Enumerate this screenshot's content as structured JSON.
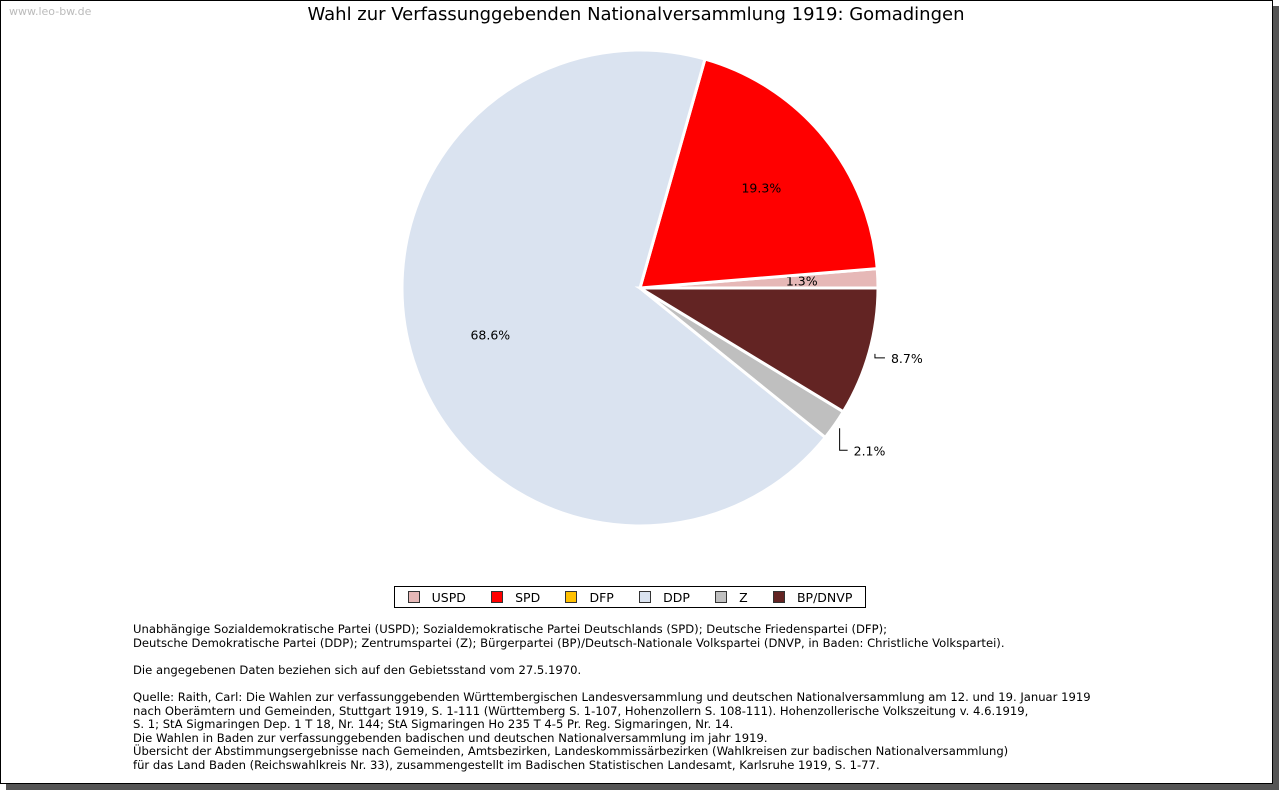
{
  "watermark": "www.leo-bw.de",
  "chart_data": {
    "type": "pie",
    "title": "Wahl zur Verfassunggebenden Nationalversammlung 1919: Gomadingen",
    "start_angle": "east, counterclockwise",
    "slices": [
      {
        "name": "USPD",
        "value": 1.3,
        "label": "1.3%",
        "color": "#e6b8b7"
      },
      {
        "name": "SPD",
        "value": 19.3,
        "label": "19.3%",
        "color": "#ff0000"
      },
      {
        "name": "DFP",
        "value": 0.0,
        "label": "0.0%",
        "color": "#ffc000"
      },
      {
        "name": "DDP",
        "value": 68.6,
        "label": "68.6%",
        "color": "#dae3f0"
      },
      {
        "name": "Z",
        "value": 2.1,
        "label": "2.1%",
        "color": "#bfbfbf"
      },
      {
        "name": "BP/DNVP",
        "value": 8.7,
        "label": "8.7%",
        "color": "#632423"
      }
    ],
    "legend_position": "bottom"
  },
  "notes": {
    "abbrev_1": "Unabhängige Sozialdemokratische Partei (USPD); Sozialdemokratische Partei Deutschlands (SPD); Deutsche Friedenspartei (DFP);",
    "abbrev_2": "Deutsche Demokratische Partei (DDP); Zentrumspartei (Z); Bürgerpartei (BP)/Deutsch-Nationale Volkspartei (DNVP, in Baden: Christliche Volkspartei).",
    "territory": "Die angegebenen Daten beziehen sich auf den Gebietsstand vom 27.5.1970.",
    "source_1": "Quelle: Raith, Carl: Die Wahlen zur verfassunggebenden Württembergischen Landesversammlung und deutschen Nationalversammlung am 12. und 19. Januar 1919",
    "source_2": "nach Oberämtern und Gemeinden, Stuttgart 1919, S. 1-111 (Württemberg S. 1-107, Hohenzollern S. 108-111). Hohenzollerische Volkszeitung v. 4.6.1919,",
    "source_3": "S. 1; StA Sigmaringen Dep. 1 T 18, Nr. 144; StA Sigmaringen Ho 235 T 4-5 Pr. Reg. Sigmaringen, Nr. 14.",
    "source_4": "Die Wahlen in Baden zur verfassunggebenden badischen und deutschen Nationalversammlung im jahr 1919.",
    "source_5": "Übersicht der Abstimmungsergebnisse nach Gemeinden, Amtsbezirken, Landeskommissärbezirken (Wahlkreisen zur badischen Nationalversammlung)",
    "source_6": "für das Land Baden (Reichswahlkreis Nr. 33), zusammengestellt im Badischen Statistischen Landesamt, Karlsruhe 1919, S. 1-77."
  }
}
